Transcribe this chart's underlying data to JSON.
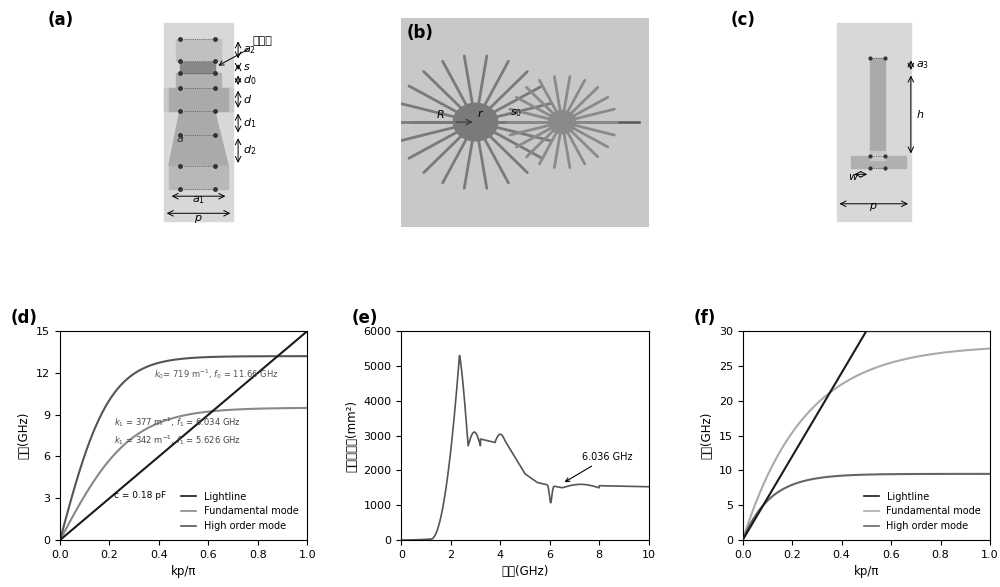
{
  "panel_d": {
    "ylabel": "頻率(GHz)",
    "xlabel": "kp/π",
    "ylim": [
      0,
      15
    ],
    "xlim": [
      0,
      1.0
    ],
    "yticks": [
      0,
      3,
      6,
      9,
      12,
      15
    ],
    "xticks": [
      0.0,
      0.2,
      0.4,
      0.6,
      0.8,
      1.0
    ],
    "lightline_color": "#1a1a1a",
    "fundamental_color": "#888888",
    "high_order_color": "#555555",
    "legend_entries": [
      "Lightline",
      "Fundamental mode",
      "High order mode"
    ]
  },
  "panel_e": {
    "ylabel": "消光截面积(mm²)",
    "xlabel": "频率(GHz)",
    "ylim": [
      0,
      6000
    ],
    "xlim": [
      0,
      10
    ],
    "yticks": [
      0,
      1000,
      2000,
      3000,
      4000,
      5000,
      6000
    ],
    "xticks": [
      0,
      2,
      4,
      6,
      8,
      10
    ],
    "annotation": "6.036 GHz",
    "curve_color": "#555555"
  },
  "panel_f": {
    "ylabel": "頻率(GHz)",
    "xlabel": "kp/π",
    "ylim": [
      0,
      30
    ],
    "xlim": [
      0,
      1.0
    ],
    "yticks": [
      0,
      5,
      10,
      15,
      20,
      25,
      30
    ],
    "xticks": [
      0.0,
      0.2,
      0.4,
      0.6,
      0.8,
      1.0
    ],
    "lightline_color": "#1a1a1a",
    "fundamental_color": "#aaaaaa",
    "high_order_color": "#666666",
    "legend_entries": [
      "Lightline",
      "Fundamental mode",
      "High order mode"
    ]
  },
  "panel_labels_fontsize": 12,
  "axis_label_fontsize": 8.5,
  "tick_fontsize": 8,
  "legend_fontsize": 7,
  "strip_color": "#d8d8d8",
  "bg_color": "#c8c8c8",
  "element_dark": "#999999",
  "element_mid": "#b8b8b8",
  "element_light": "#d0d0d0"
}
